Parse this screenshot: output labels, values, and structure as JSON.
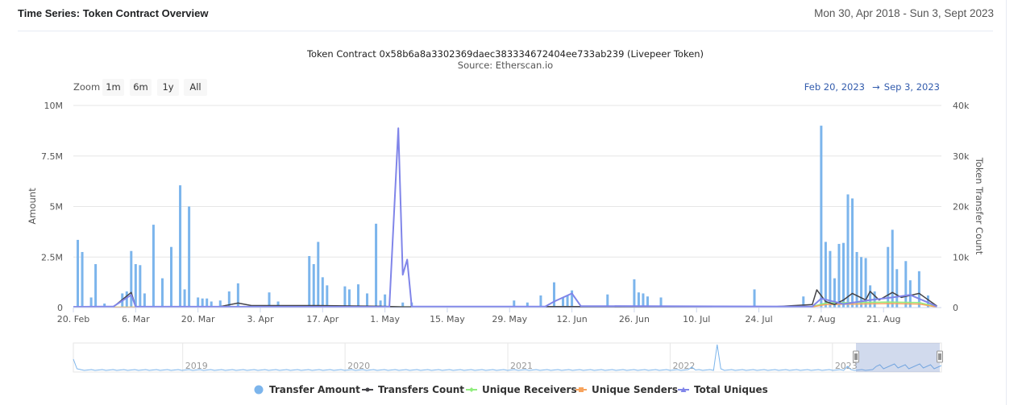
{
  "header": {
    "title": "Time Series: Token Contract Overview",
    "date_range": "Mon 30, Apr 2018 - Sun 3, Sept 2023"
  },
  "toolbar": {
    "zoom_label": "Zoom",
    "buttons": [
      "1m",
      "6m",
      "1y",
      "All"
    ],
    "range_from": "Feb 20, 2023",
    "range_arrow": "→",
    "range_to": "Sep 3, 2023"
  },
  "chart_data": {
    "type": "bar",
    "title": "Token Contract 0x58b6a8a3302369daec383334672404ee733ab239 (Livepeer Token)",
    "subtitle": "Source: Etherscan.io",
    "ylabel": "Amount",
    "y2label": "Token Transfer Count",
    "ylim": [
      0,
      10000000
    ],
    "y2lim": [
      0,
      40000
    ],
    "y_ticks": [
      "0",
      "2.5M",
      "5M",
      "7.5M",
      "10M"
    ],
    "y2_ticks": [
      "0",
      "10k",
      "20k",
      "30k",
      "40k"
    ],
    "x_range": [
      "2023-02-20",
      "2023-09-03"
    ],
    "x_ticks": [
      "20. Feb",
      "6. Mar",
      "20. Mar",
      "3. Apr",
      "17. Apr",
      "1. May",
      "15. May",
      "29. May",
      "12. Jun",
      "26. Jun",
      "10. Jul",
      "24. Jul",
      "7. Aug",
      "21. Aug"
    ],
    "grid": true,
    "legend_position": "bottom",
    "colors": {
      "amount": "#7cb5ec",
      "count": "#434348",
      "receivers": "#90ed7d",
      "senders": "#f7a35c",
      "uniques": "#8085e9"
    },
    "series": [
      {
        "name": "Transfer Amount",
        "axis": "left",
        "points": [
          [
            "2023-02-21",
            3350000
          ],
          [
            "2023-02-22",
            2750000
          ],
          [
            "2023-02-24",
            500000
          ],
          [
            "2023-02-25",
            2150000
          ],
          [
            "2023-02-27",
            200000
          ],
          [
            "2023-03-03",
            700000
          ],
          [
            "2023-03-04",
            800000
          ],
          [
            "2023-03-05",
            2800000
          ],
          [
            "2023-03-06",
            2150000
          ],
          [
            "2023-03-07",
            2100000
          ],
          [
            "2023-03-08",
            700000
          ],
          [
            "2023-03-10",
            4100000
          ],
          [
            "2023-03-12",
            1450000
          ],
          [
            "2023-03-14",
            3000000
          ],
          [
            "2023-03-16",
            6050000
          ],
          [
            "2023-03-17",
            900000
          ],
          [
            "2023-03-18",
            5000000
          ],
          [
            "2023-03-20",
            500000
          ],
          [
            "2023-03-21",
            450000
          ],
          [
            "2023-03-22",
            450000
          ],
          [
            "2023-03-23",
            300000
          ],
          [
            "2023-03-25",
            350000
          ],
          [
            "2023-03-27",
            800000
          ],
          [
            "2023-03-29",
            1200000
          ],
          [
            "2023-04-05",
            750000
          ],
          [
            "2023-04-07",
            300000
          ],
          [
            "2023-04-14",
            2550000
          ],
          [
            "2023-04-15",
            2150000
          ],
          [
            "2023-04-16",
            3250000
          ],
          [
            "2023-04-17",
            1500000
          ],
          [
            "2023-04-18",
            1100000
          ],
          [
            "2023-04-22",
            1050000
          ],
          [
            "2023-04-23",
            900000
          ],
          [
            "2023-04-25",
            1150000
          ],
          [
            "2023-04-27",
            700000
          ],
          [
            "2023-04-29",
            4150000
          ],
          [
            "2023-04-30",
            350000
          ],
          [
            "2023-05-01",
            650000
          ],
          [
            "2023-05-05",
            250000
          ],
          [
            "2023-05-07",
            250000
          ],
          [
            "2023-05-30",
            350000
          ],
          [
            "2023-06-02",
            250000
          ],
          [
            "2023-06-05",
            600000
          ],
          [
            "2023-06-08",
            1250000
          ],
          [
            "2023-06-10",
            500000
          ],
          [
            "2023-06-11",
            600000
          ],
          [
            "2023-06-12",
            850000
          ],
          [
            "2023-06-20",
            650000
          ],
          [
            "2023-06-26",
            1400000
          ],
          [
            "2023-06-27",
            750000
          ],
          [
            "2023-06-28",
            700000
          ],
          [
            "2023-06-29",
            550000
          ],
          [
            "2023-07-02",
            500000
          ],
          [
            "2023-07-23",
            900000
          ],
          [
            "2023-08-03",
            550000
          ],
          [
            "2023-08-07",
            9000000
          ],
          [
            "2023-08-08",
            3250000
          ],
          [
            "2023-08-09",
            2800000
          ],
          [
            "2023-08-10",
            1450000
          ],
          [
            "2023-08-11",
            3150000
          ],
          [
            "2023-08-12",
            3200000
          ],
          [
            "2023-08-13",
            5600000
          ],
          [
            "2023-08-14",
            5400000
          ],
          [
            "2023-08-15",
            2750000
          ],
          [
            "2023-08-16",
            2500000
          ],
          [
            "2023-08-17",
            2450000
          ],
          [
            "2023-08-18",
            1100000
          ],
          [
            "2023-08-19",
            800000
          ],
          [
            "2023-08-22",
            3000000
          ],
          [
            "2023-08-23",
            3850000
          ],
          [
            "2023-08-24",
            1900000
          ],
          [
            "2023-08-26",
            2300000
          ],
          [
            "2023-08-27",
            1350000
          ],
          [
            "2023-08-29",
            1800000
          ],
          [
            "2023-08-31",
            600000
          ]
        ]
      },
      {
        "name": "Transfers Count",
        "axis": "right",
        "points": [
          [
            "2023-02-20",
            150
          ],
          [
            "2023-03-01",
            150
          ],
          [
            "2023-03-05",
            3000
          ],
          [
            "2023-03-06",
            200
          ],
          [
            "2023-03-25",
            200
          ],
          [
            "2023-03-29",
            900
          ],
          [
            "2023-04-01",
            400
          ],
          [
            "2023-04-16",
            400
          ],
          [
            "2023-04-30",
            250
          ],
          [
            "2023-05-05",
            150
          ],
          [
            "2023-06-08",
            200
          ],
          [
            "2023-07-28",
            200
          ],
          [
            "2023-08-05",
            600
          ],
          [
            "2023-08-06",
            3500
          ],
          [
            "2023-08-08",
            1200
          ],
          [
            "2023-08-10",
            600
          ],
          [
            "2023-08-12",
            1500
          ],
          [
            "2023-08-14",
            2800
          ],
          [
            "2023-08-17",
            1500
          ],
          [
            "2023-08-18",
            3200
          ],
          [
            "2023-08-20",
            1500
          ],
          [
            "2023-08-23",
            3000
          ],
          [
            "2023-08-25",
            2000
          ],
          [
            "2023-08-29",
            2800
          ],
          [
            "2023-09-02",
            300
          ]
        ]
      },
      {
        "name": "Unique Receivers",
        "axis": "right",
        "points": [
          [
            "2023-02-20",
            80
          ],
          [
            "2023-08-05",
            200
          ],
          [
            "2023-08-08",
            900
          ],
          [
            "2023-08-15",
            1000
          ],
          [
            "2023-08-22",
            1100
          ],
          [
            "2023-08-29",
            1000
          ],
          [
            "2023-09-02",
            150
          ]
        ]
      },
      {
        "name": "Unique Senders",
        "axis": "right",
        "points": [
          [
            "2023-02-20",
            60
          ],
          [
            "2023-08-05",
            150
          ],
          [
            "2023-08-08",
            600
          ],
          [
            "2023-08-15",
            700
          ],
          [
            "2023-08-22",
            800
          ],
          [
            "2023-08-29",
            700
          ],
          [
            "2023-09-02",
            100
          ]
        ]
      },
      {
        "name": "Total Uniques",
        "axis": "right",
        "points": [
          [
            "2023-02-20",
            150
          ],
          [
            "2023-03-01",
            200
          ],
          [
            "2023-03-05",
            2500
          ],
          [
            "2023-03-06",
            200
          ],
          [
            "2023-04-30",
            150
          ],
          [
            "2023-05-02",
            200
          ],
          [
            "2023-05-04",
            35500
          ],
          [
            "2023-05-05",
            6500
          ],
          [
            "2023-05-06",
            9500
          ],
          [
            "2023-05-07",
            200
          ],
          [
            "2023-06-06",
            200
          ],
          [
            "2023-06-08",
            1200
          ],
          [
            "2023-06-12",
            2800
          ],
          [
            "2023-06-14",
            300
          ],
          [
            "2023-08-05",
            200
          ],
          [
            "2023-08-07",
            1800
          ],
          [
            "2023-08-12",
            700
          ],
          [
            "2023-08-18",
            1500
          ],
          [
            "2023-08-23",
            2000
          ],
          [
            "2023-08-27",
            2500
          ],
          [
            "2023-08-31",
            1000
          ],
          [
            "2023-09-02",
            200
          ]
        ]
      }
    ],
    "navigator": {
      "years": [
        "2019",
        "2020",
        "2021",
        "2022",
        "2023"
      ],
      "selected": [
        "2023-02-20",
        "2023-09-03"
      ]
    }
  }
}
